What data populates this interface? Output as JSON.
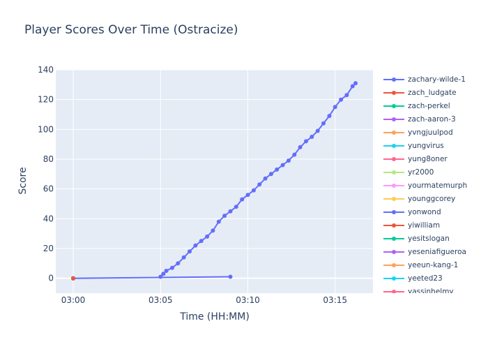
{
  "chart_data": {
    "type": "line",
    "title": "Player Scores Over Time (Ostracize)",
    "xlabel": "Time (HH:MM)",
    "ylabel": "Score",
    "xlim": [
      "02:59:00",
      "03:17:10"
    ],
    "ylim": [
      -10,
      140
    ],
    "x_ticks": [
      "03:00",
      "03:05",
      "03:10",
      "03:15"
    ],
    "y_ticks": [
      0,
      20,
      40,
      60,
      80,
      100,
      120,
      140
    ],
    "grid": true,
    "legend_position": "right",
    "series": [
      {
        "name": "zachary-wilde-1",
        "color": "#636efa",
        "x": [
          "03:05:00",
          "03:05:10",
          "03:05:20",
          "03:05:40",
          "03:06:00",
          "03:06:20",
          "03:06:40",
          "03:07:00",
          "03:07:20",
          "03:07:40",
          "03:08:00",
          "03:08:20",
          "03:08:40",
          "03:09:00",
          "03:09:20",
          "03:09:40",
          "03:10:00",
          "03:10:20",
          "03:10:40",
          "03:11:00",
          "03:11:20",
          "03:11:40",
          "03:12:00",
          "03:12:20",
          "03:12:40",
          "03:13:00",
          "03:13:20",
          "03:13:40",
          "03:14:00",
          "03:14:20",
          "03:14:40",
          "03:15:00",
          "03:15:20",
          "03:15:40",
          "03:16:00",
          "03:16:10"
        ],
        "y": [
          1,
          3,
          5,
          7,
          10,
          14,
          18,
          22,
          25,
          28,
          32,
          38,
          42,
          45,
          48,
          53,
          56,
          59,
          63,
          67,
          70,
          73,
          76,
          79,
          83,
          88,
          92,
          95,
          99,
          104,
          109,
          115,
          120,
          123,
          129,
          131
        ]
      },
      {
        "name": "zach_ludgate",
        "color": "#ef553b",
        "x": [
          "03:00:00"
        ],
        "y": [
          0
        ]
      },
      {
        "name": "zach-perkel",
        "color": "#00cc96",
        "x": [
          "03:00:00"
        ],
        "y": [
          0
        ]
      },
      {
        "name": "zach-aaron-3",
        "color": "#ab63fa",
        "x": [
          "03:00:00"
        ],
        "y": [
          0
        ]
      },
      {
        "name": "yvngjuulpod",
        "color": "#ffa15a",
        "x": [
          "03:00:00"
        ],
        "y": [
          0
        ]
      },
      {
        "name": "yungvirus",
        "color": "#19d3f3",
        "x": [
          "03:00:00"
        ],
        "y": [
          0
        ]
      },
      {
        "name": "yung8oner",
        "color": "#ff6692",
        "x": [
          "03:00:00"
        ],
        "y": [
          0
        ]
      },
      {
        "name": "yr2000",
        "color": "#b6e880",
        "x": [
          "03:00:00"
        ],
        "y": [
          0
        ]
      },
      {
        "name": "yourmatemurph",
        "color": "#ff97ff",
        "x": [
          "03:00:00"
        ],
        "y": [
          0
        ]
      },
      {
        "name": "younggcorey",
        "color": "#fecb52",
        "x": [
          "03:00:00"
        ],
        "y": [
          0
        ]
      },
      {
        "name": "yonwond",
        "color": "#636efa",
        "x": [
          "03:00:00",
          "03:09:00"
        ],
        "y": [
          0,
          1
        ]
      },
      {
        "name": "yiwilliam",
        "color": "#ef553b",
        "x": [
          "03:00:00"
        ],
        "y": [
          0
        ]
      },
      {
        "name": "yesitslogan",
        "color": "#00cc96",
        "x": [
          "03:00:00"
        ],
        "y": [
          0
        ]
      },
      {
        "name": "yeseniafigueroa",
        "color": "#ab63fa",
        "x": [
          "03:00:00"
        ],
        "y": [
          0
        ]
      },
      {
        "name": "yeeun-kang-1",
        "color": "#ffa15a",
        "x": [
          "03:00:00"
        ],
        "y": [
          0
        ]
      },
      {
        "name": "yeeted23",
        "color": "#19d3f3",
        "x": [
          "03:00:00"
        ],
        "y": [
          0
        ]
      },
      {
        "name": "yassinhelmy",
        "color": "#ff6692",
        "x": [
          "03:00:00"
        ],
        "y": [
          0
        ]
      }
    ]
  }
}
